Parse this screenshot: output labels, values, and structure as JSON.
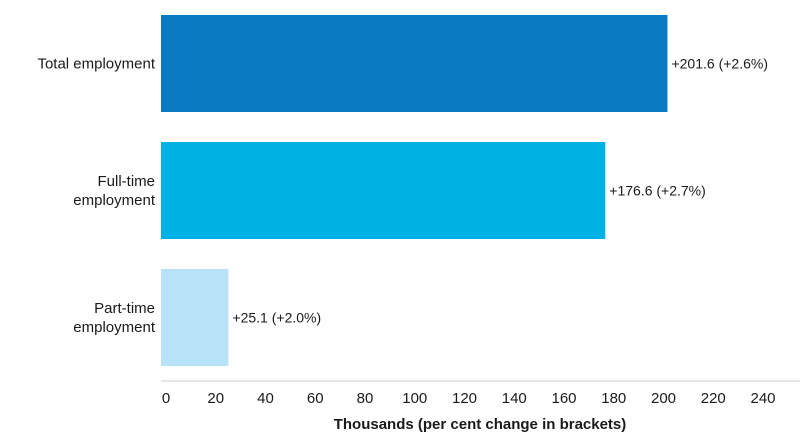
{
  "chart_data": {
    "type": "bar",
    "orientation": "horizontal",
    "categories": [
      [
        "Total employment"
      ],
      [
        "Full-time",
        "employment"
      ],
      [
        "Part-time",
        "employment"
      ]
    ],
    "values": [
      201.6,
      176.6,
      25.1
    ],
    "data_labels": [
      "+201.6 (+2.6%)",
      "+176.6 (+2.7%)",
      "+25.1 (+2.0%)"
    ],
    "colors": [
      "#0a7ac2",
      "#00b2e3",
      "#b8e2f8"
    ],
    "xlabel": "Thousands (per cent change in brackets)",
    "ylabel": "",
    "xlim": [
      0,
      250
    ],
    "xticks": [
      0,
      20,
      40,
      60,
      80,
      100,
      120,
      140,
      160,
      180,
      200,
      220,
      240
    ],
    "grid": false,
    "legend": "none"
  }
}
